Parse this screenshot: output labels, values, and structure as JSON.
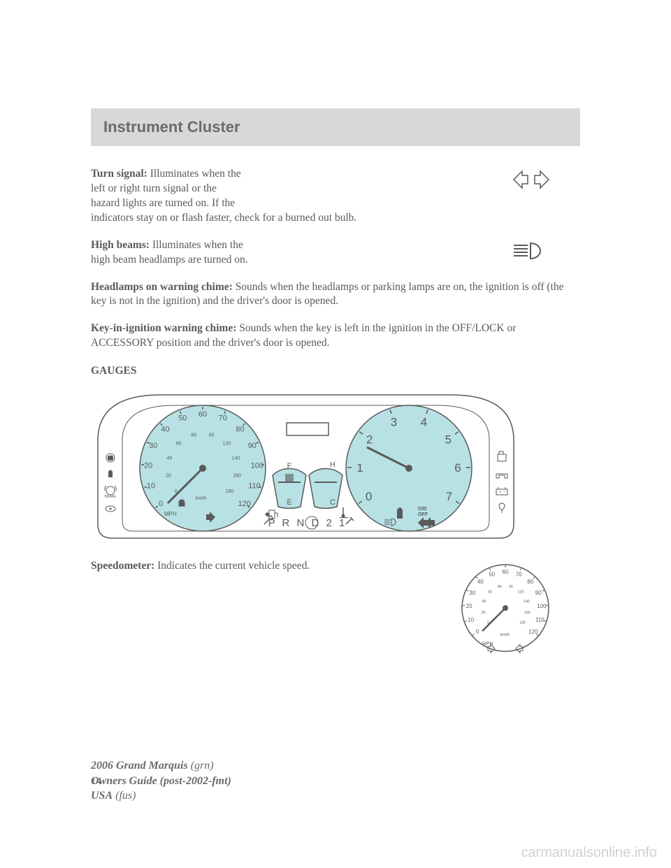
{
  "header": {
    "title": "Instrument Cluster"
  },
  "sections": {
    "turn_signal": {
      "label": "Turn signal:",
      "text_line1": " Illuminates when the",
      "text_line2": "left or right turn signal or the",
      "text_line3": "hazard lights are turned on. If the",
      "text_line4": "indicators stay on or flash faster, check for a burned out bulb."
    },
    "high_beams": {
      "label": "High beams:",
      "text_line1": " Illuminates when the",
      "text_line2": "high beam headlamps are turned on."
    },
    "headlamps_chime": {
      "label": "Headlamps on warning chime:",
      "text": " Sounds when the headlamps or parking lamps are on, the ignition is off (the key is not in the ignition) and the driver's door is opened."
    },
    "key_chime": {
      "label": "Key-in-ignition warning chime:",
      "text": " Sounds when the key is left in the ignition in the OFF/LOCK or ACCESSORY position and the driver's door is opened."
    },
    "gauges_heading": "GAUGES",
    "speedometer": {
      "label": "Speedometer:",
      "text": " Indicates the current vehicle speed."
    }
  },
  "cluster": {
    "speedo_mph": [
      "0",
      "10",
      "20",
      "30",
      "40",
      "50",
      "60",
      "70",
      "80",
      "90",
      "100",
      "110",
      "120"
    ],
    "speedo_kmh": [
      "0",
      "20",
      "40",
      "60",
      "80",
      "00",
      "120",
      "140",
      "160",
      "180"
    ],
    "speedo_unit_mph": "MPH",
    "speedo_unit_kmh": "km/h",
    "tach": [
      "0",
      "1",
      "2",
      "3",
      "4",
      "5",
      "6",
      "7"
    ],
    "tach_od": "O/D",
    "tach_off": "OFF",
    "fuel": {
      "f": "F",
      "e": "E"
    },
    "temp": {
      "h": "H",
      "c": "C"
    },
    "gear": "P  R  N  D  2  1",
    "left_icons": [
      "airbag",
      "seatbelt",
      "brake",
      "cruise"
    ],
    "right_icons": [
      "door",
      "engine",
      "battery",
      "light"
    ],
    "brake_label": "BRAKE",
    "colors": {
      "gauge_face": "#b7e1e4",
      "outline": "#5a5a5a",
      "bg": "#ffffff"
    }
  },
  "page_number": "14",
  "footer": {
    "model": "2006 Grand Marquis",
    "model_code": "(grn)",
    "guide": "Owners Guide (post-2002-fmt)",
    "region": "USA",
    "region_code": "(fus)"
  },
  "watermark": "carmanualsonline.info"
}
